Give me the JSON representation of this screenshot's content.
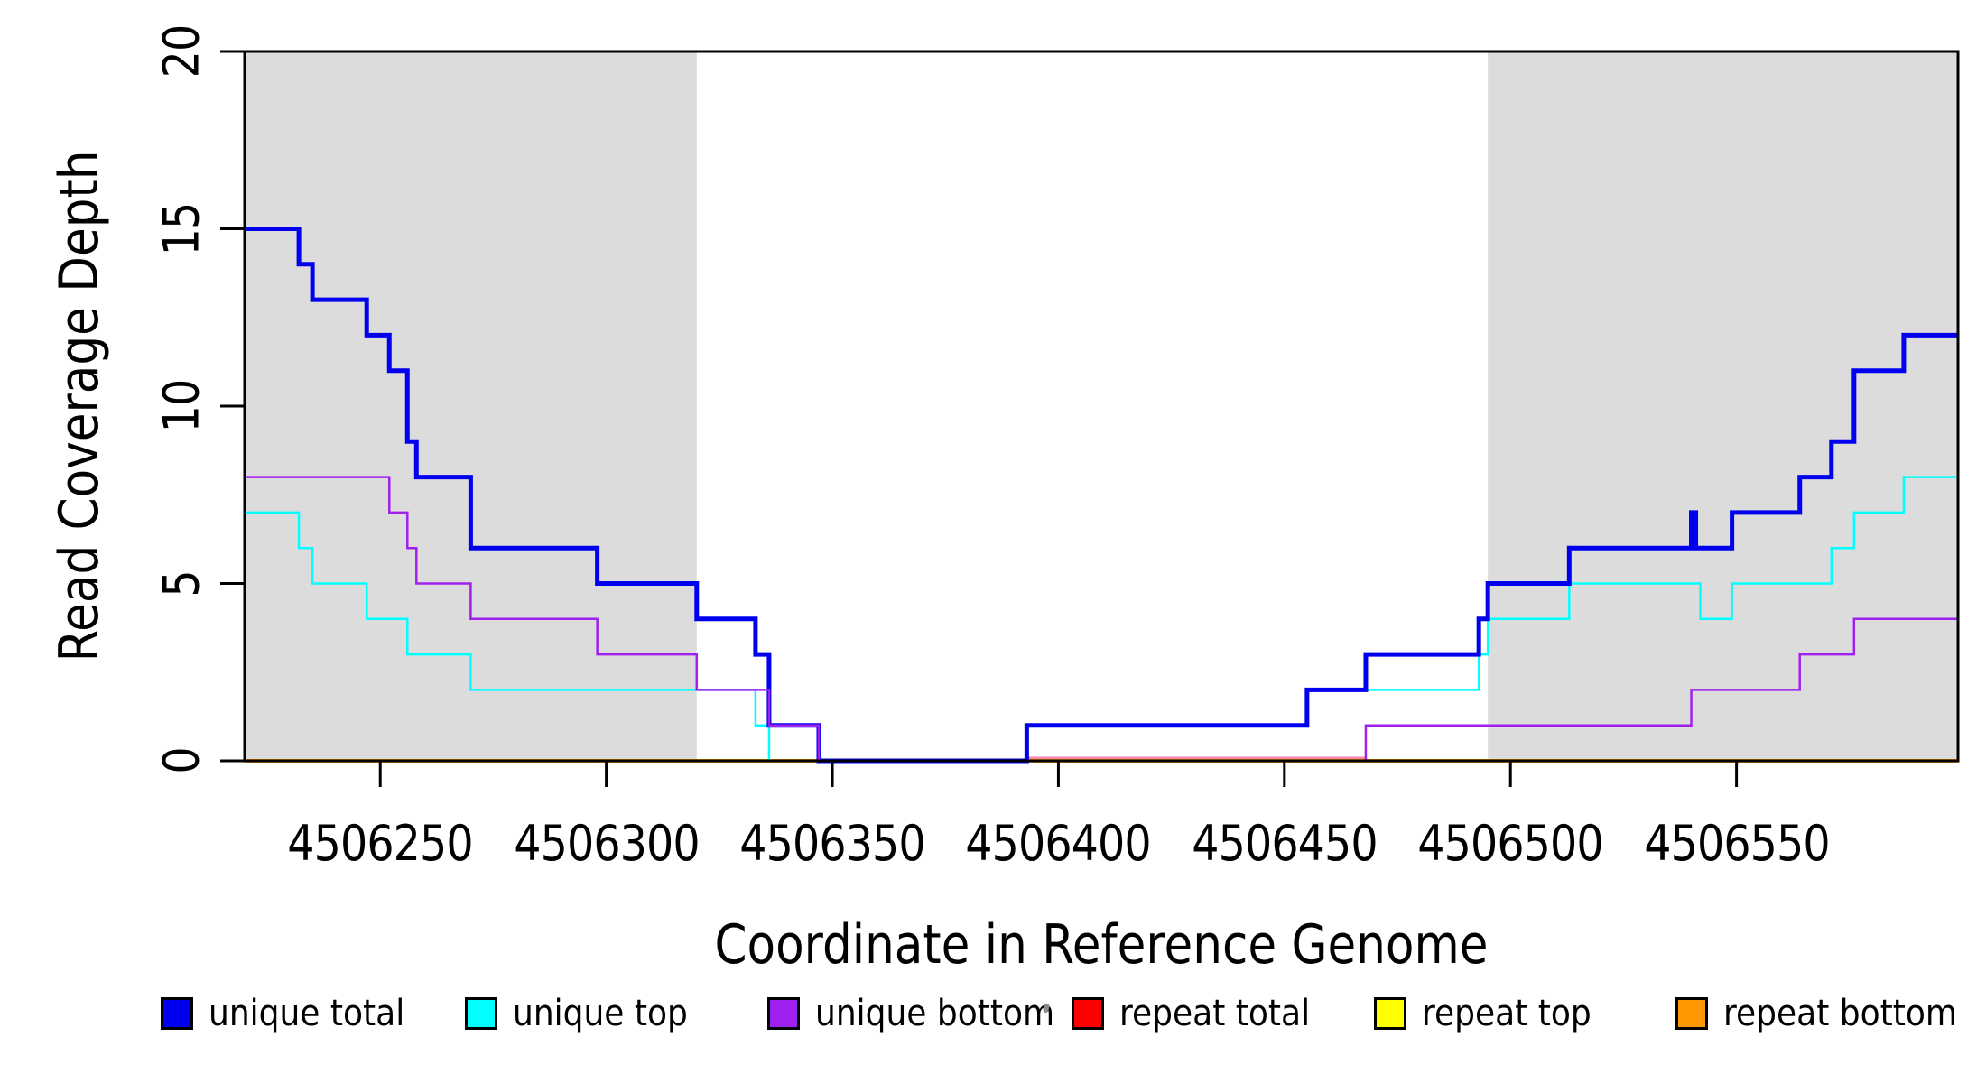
{
  "figure": {
    "x_axis_title": "Coordinate in Reference Genome",
    "y_axis_title": "Read Coverage Depth"
  },
  "axes": {
    "x_ticks": [
      {
        "coord": 4506250,
        "label": "4506250"
      },
      {
        "coord": 4506300,
        "label": "4506300"
      },
      {
        "coord": 4506350,
        "label": "4506350"
      },
      {
        "coord": 4506400,
        "label": "4506400"
      },
      {
        "coord": 4506450,
        "label": "4506450"
      },
      {
        "coord": 4506500,
        "label": "4506500"
      },
      {
        "coord": 4506550,
        "label": "4506550"
      }
    ],
    "y_ticks": [
      {
        "value": 0,
        "label": "0"
      },
      {
        "value": 5,
        "label": "5"
      },
      {
        "value": 10,
        "label": "10"
      },
      {
        "value": 15,
        "label": "15"
      },
      {
        "value": 20,
        "label": "20"
      }
    ]
  },
  "chart_data": {
    "type": "line",
    "subtype": "step-coverage",
    "title": "",
    "xlabel": "Coordinate in Reference Genome",
    "ylabel": "Read Coverage Depth",
    "xlim": [
      4506220,
      4506599
    ],
    "ylim": [
      0,
      20
    ],
    "grid": false,
    "legend_position": "bottom",
    "shaded_regions": [
      {
        "name": "left",
        "start": 4506220,
        "end": 4506320,
        "color": "#DCDCDC"
      },
      {
        "name": "right",
        "start": 4506495,
        "end": 4506599,
        "color": "#DCDCDC"
      }
    ],
    "series": [
      {
        "id": "repeat-top",
        "name": "repeat top",
        "color": "#FFFF00",
        "width": 2.5,
        "steps": [
          [
            4506220,
            0
          ],
          [
            4506599,
            0
          ]
        ]
      },
      {
        "id": "repeat-total",
        "name": "repeat total",
        "color": "#FF0000",
        "width": 2.5,
        "steps": [
          [
            4506220,
            0
          ],
          [
            4506599,
            0
          ]
        ]
      },
      {
        "id": "repeat-bottom",
        "name": "repeat bottom",
        "color": "#FF9800",
        "width": 4,
        "steps": [
          [
            4506220,
            0
          ],
          [
            4506599,
            0
          ]
        ]
      },
      {
        "id": "unique-top",
        "name": "unique top",
        "color": "#00FFFF",
        "width": 2.5,
        "steps": [
          [
            4506220,
            7
          ],
          [
            4506232,
            6
          ],
          [
            4506235,
            5
          ],
          [
            4506247,
            4
          ],
          [
            4506256,
            3
          ],
          [
            4506270,
            2
          ],
          [
            4506333,
            1
          ],
          [
            4506336,
            0
          ],
          [
            4506393,
            1
          ],
          [
            4506455,
            2
          ],
          [
            4506493,
            3
          ],
          [
            4506495,
            4
          ],
          [
            4506513,
            5
          ],
          [
            4506542,
            4
          ],
          [
            4506549,
            5
          ],
          [
            4506571,
            6
          ],
          [
            4506576,
            7
          ],
          [
            4506587,
            8
          ],
          [
            4506599,
            8
          ]
        ]
      },
      {
        "id": "unique-total",
        "name": "unique total",
        "color": "#0000EE",
        "width": 5,
        "steps": [
          [
            4506220,
            15
          ],
          [
            4506232,
            14
          ],
          [
            4506235,
            13
          ],
          [
            4506247,
            12
          ],
          [
            4506252,
            11
          ],
          [
            4506256,
            9
          ],
          [
            4506258,
            8
          ],
          [
            4506270,
            6
          ],
          [
            4506298,
            5
          ],
          [
            4506320,
            4
          ],
          [
            4506333,
            3
          ],
          [
            4506336,
            1
          ],
          [
            4506347,
            0
          ],
          [
            4506393,
            1
          ],
          [
            4506455,
            2
          ],
          [
            4506468,
            3
          ],
          [
            4506493,
            4
          ],
          [
            4506495,
            5
          ],
          [
            4506513,
            6
          ],
          [
            4506540,
            7
          ],
          [
            4506541,
            6
          ],
          [
            4506549,
            7
          ],
          [
            4506564,
            8
          ],
          [
            4506571,
            9
          ],
          [
            4506576,
            11
          ],
          [
            4506587,
            12
          ],
          [
            4506599,
            12
          ]
        ]
      },
      {
        "id": "unique-bottom",
        "name": "unique bottom",
        "color": "#A020F0",
        "width": 2.5,
        "steps": [
          [
            4506220,
            8
          ],
          [
            4506252,
            7
          ],
          [
            4506256,
            6
          ],
          [
            4506258,
            5
          ],
          [
            4506270,
            4
          ],
          [
            4506298,
            3
          ],
          [
            4506320,
            2
          ],
          [
            4506336,
            1
          ],
          [
            4506347,
            0
          ],
          [
            4506468,
            1
          ],
          [
            4506540,
            2
          ],
          [
            4506564,
            3
          ],
          [
            4506576,
            4
          ],
          [
            4506599,
            4
          ]
        ]
      }
    ],
    "baseline_overlays": [
      {
        "name": "repeat-total-peek",
        "color": "#FF85A8",
        "start": 4506393,
        "end": 4506468,
        "dy": -3,
        "width": 3
      }
    ]
  },
  "legend": {
    "items": [
      {
        "label": "unique total",
        "color": "#0000EE"
      },
      {
        "label": "unique top",
        "color": "#00FFFF"
      },
      {
        "label": "unique bottom",
        "color": "#A020F0"
      },
      {
        "label": "repeat total",
        "color": "#FF0000"
      },
      {
        "label": "repeat top",
        "color": "#FFFF00"
      },
      {
        "label": "repeat bottom",
        "color": "#FF9800"
      }
    ]
  }
}
